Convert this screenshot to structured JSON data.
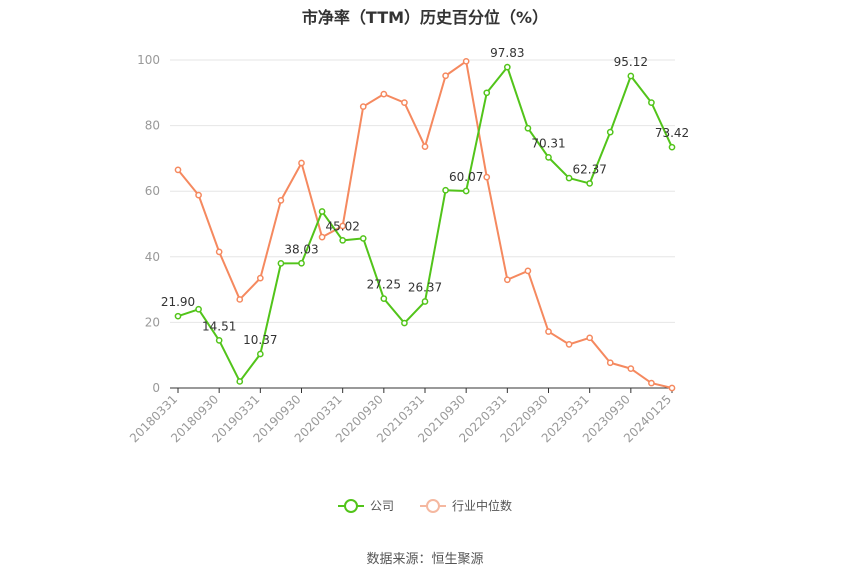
{
  "title": "市净率（TTM）历史百分位（%）",
  "source": "数据来源：恒生聚源",
  "colors": {
    "company": "#52c41a",
    "industry": "#f5895f",
    "grid": "#e6e6e6",
    "axis": "#999999"
  },
  "legend": {
    "company": "公司",
    "industry": "行业中位数"
  },
  "chart_data": {
    "type": "line",
    "title": "市净率（TTM）历史百分位（%）",
    "ylim": [
      0,
      100
    ],
    "yticks": [
      0,
      20,
      40,
      60,
      80,
      100
    ],
    "grid": true,
    "legend_position": "bottom",
    "x_labels": [
      "20180331",
      "20180930",
      "20190331",
      "20190930",
      "20200331",
      "20200930",
      "20210331",
      "20210930",
      "20220331",
      "20220930",
      "20230331",
      "20230930",
      "20240125"
    ],
    "series": [
      {
        "name": "公司",
        "values": [
          21.9,
          24.0,
          14.51,
          2.0,
          10.37,
          38.0,
          38.03,
          53.8,
          45.02,
          45.6,
          27.25,
          19.8,
          26.37,
          60.3,
          60.07,
          90.0,
          97.83,
          79.2,
          70.31,
          64.0,
          62.37,
          78.0,
          95.12,
          87.0,
          73.42
        ],
        "labels": {
          "0": "21.90",
          "2": "14.51",
          "4": "10.37",
          "6": "38.03",
          "8": "45.02",
          "10": "27.25",
          "12": "26.37",
          "14": "60.07",
          "16": "97.83",
          "18": "70.31",
          "20": "62.37",
          "22": "95.12",
          "24": "73.42"
        }
      },
      {
        "name": "行业中位数",
        "values": [
          66.5,
          58.8,
          41.5,
          27.0,
          33.5,
          57.2,
          68.6,
          46.0,
          49.4,
          85.8,
          89.6,
          87.0,
          73.6,
          95.2,
          99.6,
          64.3,
          33.0,
          35.7,
          17.2,
          13.3,
          15.3,
          7.7,
          5.9,
          1.5,
          0.0
        ]
      }
    ]
  }
}
